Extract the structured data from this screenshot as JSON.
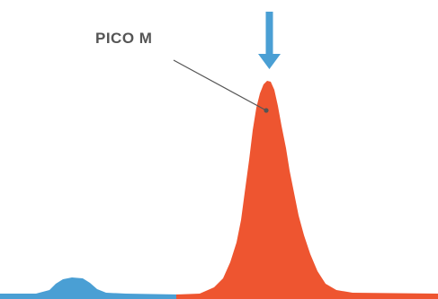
{
  "diagram": {
    "annotation": {
      "label": "PICO M"
    },
    "icons": {
      "marker": "down-arrow-icon",
      "pointer": "leader-line"
    },
    "colors": {
      "background": "#ffffff",
      "minor_peak": "#4a9fd4",
      "major_peak": "#ee5530",
      "arrow": "#4a9fd4",
      "label_text": "#555555",
      "leader_line": "#555555"
    }
  }
}
